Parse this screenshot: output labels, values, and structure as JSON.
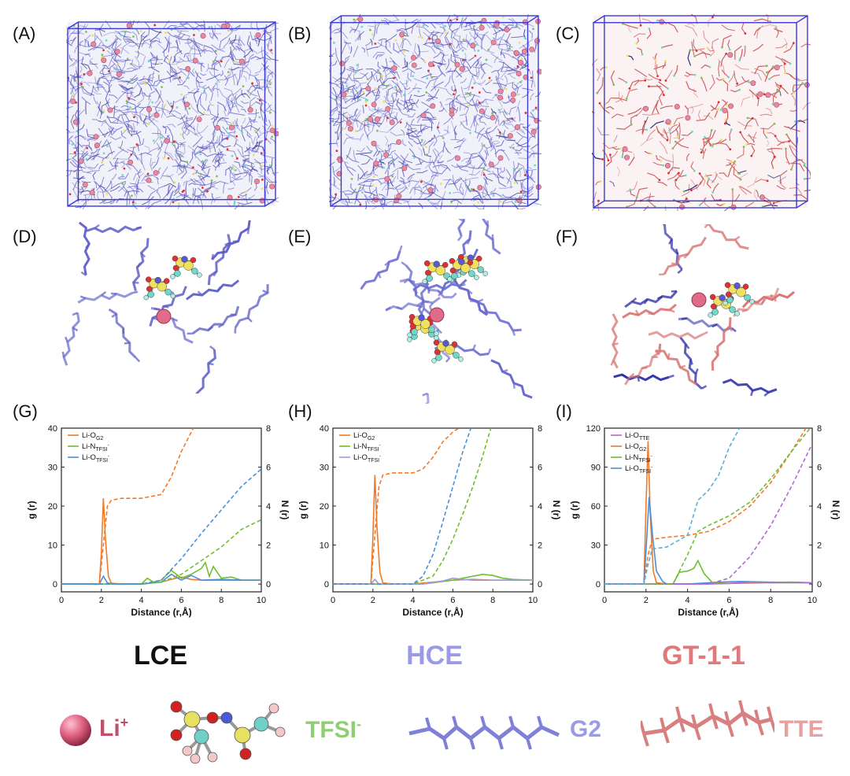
{
  "panel_labels": [
    "(A)",
    "(B)",
    "(C)",
    "(D)",
    "(E)",
    "(F)",
    "(G)",
    "(H)",
    "(I)"
  ],
  "systems": [
    {
      "name": "LCE",
      "color": "#111111"
    },
    {
      "name": "HCE",
      "color": "#9a9ae6"
    },
    {
      "name": "GT-1-1",
      "color": "#e07a7a"
    }
  ],
  "legend": {
    "li": {
      "text": "Li",
      "sup": "+",
      "color": "#c0506a"
    },
    "tfsi": {
      "text": "TFSI",
      "sup": "-",
      "color": "#8fcf72"
    },
    "g2": {
      "text": "G2",
      "color": "#9a9ae6"
    },
    "tte": {
      "text": "TTE",
      "color": "#e8a0a0"
    }
  },
  "colors": {
    "g2": "#6a6ad0",
    "tte": "#e08080",
    "li": "#e06c8a",
    "orange": "#f07a2a",
    "green": "#6cc030",
    "blue": "#4a90d9",
    "purple": "#b06ad8",
    "cyan": "#5aaedc"
  },
  "chart_data": [
    {
      "type": "line",
      "panel": "(G)",
      "xlabel": "Distance (r,Å)",
      "ylabel": "g (r)",
      "y2label": "N (r)",
      "xlim": [
        0,
        10
      ],
      "ylim": [
        -2,
        40
      ],
      "y2lim": [
        -0.4,
        8
      ],
      "xticks": [
        0,
        2,
        4,
        6,
        8,
        10
      ],
      "yticks": [
        0,
        10,
        20,
        30,
        40
      ],
      "y2ticks": [
        0,
        2,
        4,
        6,
        8
      ],
      "legend": [
        {
          "label": "Li-O",
          "sub": "G2",
          "color": "#f07a2a"
        },
        {
          "label": "Li-N",
          "sub": "TFSI",
          "sup": "-",
          "color": "#6cc030"
        },
        {
          "label": "Li-O",
          "sub": "TFSI",
          "sup": "-",
          "color": "#4a90d9"
        }
      ],
      "series": [
        {
          "name": "Li-O_G2 g(r)",
          "color": "#f07a2a",
          "dash": false,
          "axis": "left",
          "x": [
            0,
            1.9,
            2.0,
            2.1,
            2.2,
            2.35,
            2.5,
            3.0,
            4.0,
            5.0,
            5.5,
            6.0,
            6.5,
            7.0,
            8.0,
            9.0,
            10.0
          ],
          "y": [
            0,
            0,
            8,
            22,
            12,
            2,
            0.2,
            0,
            0,
            0.5,
            1.2,
            1.8,
            1.2,
            1.0,
            1.0,
            1.0,
            1.0
          ]
        },
        {
          "name": "Li-N_TFSI g(r)",
          "color": "#6cc030",
          "dash": false,
          "axis": "left",
          "x": [
            0,
            4.0,
            4.3,
            4.6,
            5.0,
            5.5,
            6.0,
            6.5,
            7.0,
            7.2,
            7.4,
            7.6,
            8.0,
            8.5,
            9.0,
            10.0
          ],
          "y": [
            0,
            0,
            1.5,
            0.5,
            1.0,
            3.5,
            1.5,
            2.5,
            4.0,
            5.5,
            2.0,
            4.5,
            1.5,
            1.8,
            1.0,
            1.0
          ]
        },
        {
          "name": "Li-O_TFSI g(r)",
          "color": "#4a90d9",
          "dash": false,
          "axis": "left",
          "x": [
            0,
            1.9,
            2.1,
            2.3,
            2.6,
            4.0,
            5.0,
            5.5,
            6.0,
            6.5,
            7.0,
            8.0,
            9.0,
            10.0
          ],
          "y": [
            0,
            0,
            2.0,
            0.3,
            0,
            0,
            0.5,
            2.5,
            1.0,
            2.2,
            1.0,
            1.2,
            1.0,
            1.0
          ]
        },
        {
          "name": "Li-O_G2 N(r)",
          "color": "#f07a2a",
          "dash": true,
          "axis": "right",
          "x": [
            0,
            1.9,
            2.1,
            2.3,
            2.5,
            3.0,
            4.0,
            5.0,
            5.5,
            6.0,
            6.4,
            6.6
          ],
          "y": [
            0,
            0,
            2.0,
            4.0,
            4.3,
            4.4,
            4.4,
            4.6,
            5.5,
            6.8,
            7.6,
            8.0
          ]
        },
        {
          "name": "Li-N_TFSI N(r)",
          "color": "#6cc030",
          "dash": true,
          "axis": "right",
          "x": [
            0,
            4.0,
            5.0,
            6.0,
            7.0,
            8.0,
            9.0,
            10.0
          ],
          "y": [
            0,
            0,
            0.1,
            0.5,
            1.2,
            1.9,
            2.8,
            3.3
          ]
        },
        {
          "name": "Li-O_TFSI N(r)",
          "color": "#4a90d9",
          "dash": true,
          "axis": "right",
          "x": [
            0,
            4.0,
            5.0,
            6.0,
            7.0,
            8.0,
            9.0,
            10.0
          ],
          "y": [
            0,
            0,
            0.2,
            1.3,
            2.6,
            3.8,
            5.0,
            5.9
          ]
        }
      ]
    },
    {
      "type": "line",
      "panel": "(H)",
      "xlabel": "Distance (r,Å)",
      "ylabel": "g (r)",
      "y2label": "N (r)",
      "xlim": [
        0,
        10
      ],
      "ylim": [
        -2,
        40
      ],
      "y2lim": [
        -0.4,
        8
      ],
      "xticks": [
        0,
        2,
        4,
        6,
        8,
        10
      ],
      "yticks": [
        0,
        10,
        20,
        30,
        40
      ],
      "y2ticks": [
        0,
        2,
        4,
        6,
        8
      ],
      "legend": [
        {
          "label": "Li-O",
          "sub": "G2",
          "color": "#f07a2a"
        },
        {
          "label": "Li-N",
          "sub": "TFSI",
          "sup": "-",
          "color": "#6cc030"
        },
        {
          "label": "Li-O",
          "sub": "TFSI",
          "sup": "-",
          "color": "#9a9ae6"
        }
      ],
      "series": [
        {
          "name": "Li-O_G2 g(r)",
          "color": "#f07a2a",
          "dash": false,
          "axis": "left",
          "x": [
            0,
            1.9,
            2.0,
            2.1,
            2.2,
            2.35,
            2.5,
            3.0,
            4.0,
            5.0,
            6.0,
            7.0,
            8.0,
            9.0,
            10.0
          ],
          "y": [
            0,
            0,
            12,
            28,
            15,
            3,
            0.3,
            0,
            0,
            0.5,
            1.0,
            1.2,
            1.0,
            1.0,
            1.0
          ]
        },
        {
          "name": "Li-N_TFSI g(r)",
          "color": "#6cc030",
          "dash": false,
          "axis": "left",
          "x": [
            0,
            4.5,
            5.0,
            6.0,
            7.0,
            7.5,
            8.0,
            8.5,
            9.0,
            10.0
          ],
          "y": [
            0,
            0,
            0.3,
            1.0,
            2.0,
            2.5,
            2.2,
            1.5,
            1.2,
            1.0
          ]
        },
        {
          "name": "Li-O_TFSI g(r)",
          "color": "#9a9ae6",
          "dash": false,
          "axis": "left",
          "x": [
            0,
            1.9,
            2.1,
            2.3,
            4.5,
            5.5,
            6.0,
            6.5,
            7.0,
            8.0,
            9.0,
            10.0
          ],
          "y": [
            0,
            0,
            1.2,
            0,
            0,
            0.8,
            1.5,
            1.2,
            1.0,
            1.0,
            1.0,
            1.0
          ]
        },
        {
          "name": "Li-O_G2 N(r)",
          "color": "#f07a2a",
          "dash": true,
          "axis": "right",
          "x": [
            0,
            1.9,
            2.1,
            2.3,
            2.5,
            3.0,
            4.0,
            4.5,
            5.0,
            5.5,
            6.0,
            6.3
          ],
          "y": [
            0,
            0,
            2.5,
            5.0,
            5.6,
            5.7,
            5.7,
            5.9,
            6.5,
            7.3,
            7.8,
            8.0
          ]
        },
        {
          "name": "Li-N_TFSI N(r)",
          "color": "#6cc030",
          "dash": true,
          "axis": "right",
          "x": [
            0,
            4.0,
            5.0,
            5.5,
            6.0,
            6.5,
            7.0,
            7.5,
            7.9
          ],
          "y": [
            0,
            0,
            0.4,
            1.2,
            2.3,
            3.6,
            5.0,
            6.6,
            8.0
          ]
        },
        {
          "name": "Li-O_TFSI N(r)",
          "color": "#4a90d9",
          "dash": true,
          "axis": "right",
          "x": [
            0,
            4.0,
            4.5,
            5.0,
            5.5,
            6.0,
            6.5,
            6.9
          ],
          "y": [
            0,
            0,
            0.4,
            1.5,
            3.2,
            5.0,
            6.8,
            8.0
          ]
        }
      ]
    },
    {
      "type": "line",
      "panel": "(I)",
      "xlabel": "Distance (r,Å)",
      "ylabel": "g (r)",
      "y2label": "N (r)",
      "xlim": [
        0,
        10
      ],
      "ylim": [
        -6,
        120
      ],
      "y2lim": [
        -0.4,
        8
      ],
      "xticks": [
        0,
        2,
        4,
        6,
        8,
        10
      ],
      "yticks": [
        0,
        30,
        60,
        90,
        120
      ],
      "y2ticks": [
        0,
        2,
        4,
        6,
        8
      ],
      "legend": [
        {
          "label": "Li-O",
          "sub": "TTE",
          "color": "#b06ad8"
        },
        {
          "label": "Li-O",
          "sub": "G2",
          "color": "#f07a2a"
        },
        {
          "label": "Li-N",
          "sub": "TFSI",
          "sup": "-",
          "color": "#6cc030"
        },
        {
          "label": "Li-O",
          "sub": "TFSI",
          "sup": "-",
          "color": "#4a90d9"
        }
      ],
      "series": [
        {
          "name": "Li-O_G2 g(r)",
          "color": "#f07a2a",
          "dash": false,
          "axis": "left",
          "x": [
            0,
            1.9,
            2.0,
            2.1,
            2.2,
            2.35,
            2.5,
            3.0,
            4.0,
            6.0,
            8.0,
            10.0
          ],
          "y": [
            0,
            0,
            60,
            110,
            55,
            10,
            1,
            0,
            0,
            0.5,
            1,
            1
          ]
        },
        {
          "name": "Li-O_TFSI g(r)",
          "color": "#4a90d9",
          "dash": false,
          "axis": "left",
          "x": [
            0,
            1.9,
            2.0,
            2.15,
            2.3,
            2.5,
            2.8,
            3.0,
            4.0,
            5.5,
            6.5,
            8.0,
            10.0
          ],
          "y": [
            0,
            0,
            25,
            67,
            40,
            10,
            2,
            0,
            0,
            1.5,
            2,
            1.5,
            1
          ]
        },
        {
          "name": "Li-N_TFSI g(r)",
          "color": "#6cc030",
          "dash": false,
          "axis": "left",
          "x": [
            0,
            3.3,
            3.6,
            4.0,
            4.3,
            4.5,
            4.8,
            5.2,
            6.0,
            7.0,
            8.0,
            10.0
          ],
          "y": [
            0,
            0,
            9,
            10,
            12,
            18,
            8,
            1,
            0.5,
            1.5,
            1,
            1
          ]
        },
        {
          "name": "Li-O_TTE g(r)",
          "color": "#b06ad8",
          "dash": false,
          "axis": "left",
          "x": [
            0,
            5.0,
            6.0,
            7.0,
            8.0,
            9.0,
            10.0
          ],
          "y": [
            0,
            0,
            0.5,
            1.5,
            1.2,
            1.5,
            1.0
          ]
        },
        {
          "name": "Li-O_TTE N(r)",
          "color": "#b06ad8",
          "dash": true,
          "axis": "right",
          "x": [
            0,
            5.0,
            6.0,
            7.0,
            8.0,
            9.0,
            10.0
          ],
          "y": [
            0,
            0,
            0.3,
            1.4,
            3.0,
            5.0,
            7.2
          ]
        },
        {
          "name": "Li-O_G2 N(r)",
          "color": "#f07a2a",
          "dash": true,
          "axis": "right",
          "x": [
            0,
            1.9,
            2.1,
            2.3,
            3.0,
            4.0,
            5.0,
            6.0,
            7.0,
            8.0,
            9.0,
            9.7
          ],
          "y": [
            0,
            0,
            1.5,
            2.3,
            2.4,
            2.5,
            2.7,
            3.2,
            4.0,
            5.2,
            6.8,
            8.0
          ]
        },
        {
          "name": "Li-N_TFSI N(r)",
          "color": "#6cc030",
          "dash": true,
          "axis": "right",
          "x": [
            0,
            3.3,
            4.0,
            4.5,
            5.0,
            6.0,
            7.0,
            8.0,
            9.0,
            9.9
          ],
          "y": [
            0,
            0,
            1.5,
            2.7,
            3.0,
            3.5,
            4.2,
            5.4,
            6.8,
            8.0
          ]
        },
        {
          "name": "Li-O_TFSI N(r)",
          "color": "#5aaedc",
          "dash": true,
          "axis": "right",
          "x": [
            0,
            1.9,
            2.1,
            2.3,
            3.0,
            4.0,
            4.5,
            5.0,
            5.5,
            6.0,
            6.5
          ],
          "y": [
            0,
            0,
            1.0,
            1.8,
            1.9,
            2.5,
            4.3,
            4.8,
            5.6,
            7.0,
            8.0
          ]
        }
      ]
    }
  ]
}
